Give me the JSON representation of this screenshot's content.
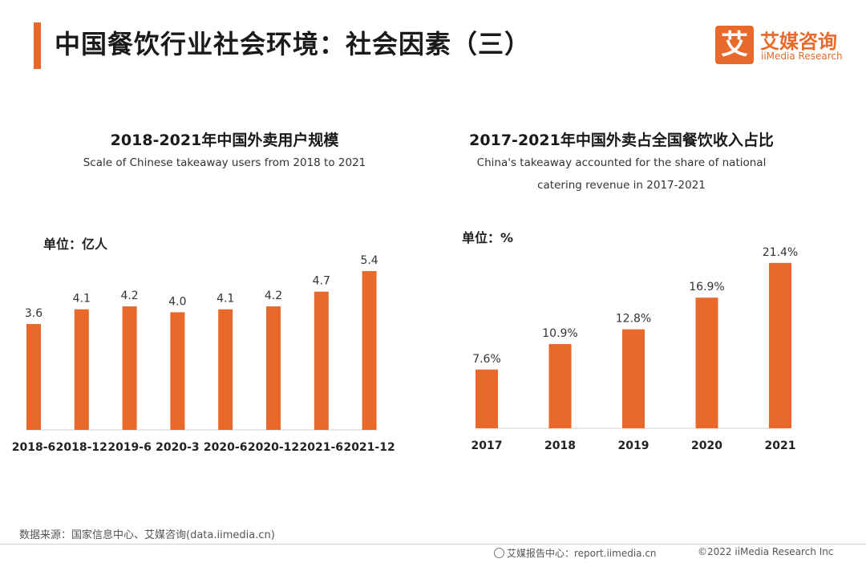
{
  "header": {
    "title": "中国餐饮行业社会环境：社会因素（三）",
    "logo_cn": "艾媒咨询",
    "logo_en": "iiMedia Research",
    "logo_glyph": "艾",
    "accent_color": "#e8692a"
  },
  "charts": [
    {
      "title": "2018-2021年中国外卖用户规模",
      "subtitle_lines": [
        "Scale of Chinese takeaway users from 2018 to 2021"
      ],
      "unit": "单位：亿人"
    },
    {
      "title": "2017-2021年中国外卖占全国餐饮收入占比",
      "subtitle_lines": [
        "China's takeaway accounted for the share of national",
        "catering revenue in 2017-2021"
      ],
      "unit": "单位：%"
    }
  ],
  "chart_data": [
    {
      "type": "bar",
      "title": "2018-2021年中国外卖用户规模",
      "subtitle": "Scale of Chinese takeaway users from 2018 to 2021",
      "unit": "单位：亿人",
      "categories": [
        "2018-6",
        "2018-12",
        "2019-6",
        "2020-3",
        "2020-6",
        "2020-12",
        "2021-6",
        "2021-12"
      ],
      "values": [
        3.6,
        4.1,
        4.2,
        4.0,
        4.1,
        4.2,
        4.7,
        5.4
      ],
      "labels": [
        "3.6",
        "4.1",
        "4.2",
        "4.0",
        "4.1",
        "4.2",
        "4.7",
        "5.4"
      ],
      "color": "#e8692a",
      "ylim": [
        0,
        6
      ]
    },
    {
      "type": "bar",
      "title": "2017-2021年中国外卖占全国餐饮收入占比",
      "subtitle": "China's takeaway accounted for the share of national catering revenue in 2017-2021",
      "unit": "单位：%",
      "categories": [
        "2017",
        "2018",
        "2019",
        "2020",
        "2021"
      ],
      "values": [
        7.6,
        10.9,
        12.8,
        16.9,
        21.4
      ],
      "labels": [
        "7.6%",
        "10.9%",
        "12.8%",
        "16.9%",
        "21.4%"
      ],
      "color": "#e8692a",
      "ylim": [
        0,
        22
      ]
    }
  ],
  "footer": {
    "source": "数据来源：国家信息中心、艾媒咨询(data.iimedia.cn)",
    "report": "艾媒报告中心：report.iimedia.cn",
    "copyright": "©2022  iiMedia Research  Inc"
  }
}
